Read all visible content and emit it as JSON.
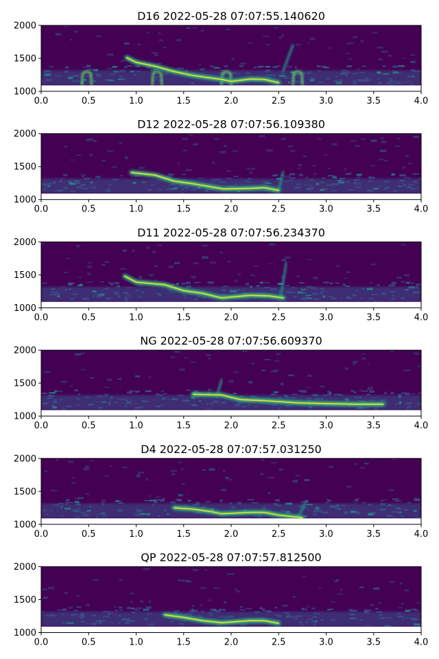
{
  "chart_data": [
    {
      "type": "heatmap",
      "title": "D16 2022-05-28 07:07:55.140620",
      "xlabel": "",
      "ylabel": "",
      "xlim": [
        0,
        4
      ],
      "ylim": [
        1000,
        2000
      ],
      "x_ticks": [
        "0.0",
        "0.5",
        "1.0",
        "1.5",
        "2.0",
        "2.5",
        "3.0",
        "3.5",
        "4.0"
      ],
      "y_ticks": [
        "1000",
        "1500",
        "2000"
      ],
      "data_floor": 1090,
      "colormap": "viridis",
      "call_track": [
        [
          0.9,
          1510
        ],
        [
          1.0,
          1440
        ],
        [
          1.2,
          1380
        ],
        [
          1.4,
          1300
        ],
        [
          1.6,
          1240
        ],
        [
          1.8,
          1200
        ],
        [
          1.9,
          1180
        ],
        [
          2.0,
          1150
        ],
        [
          2.2,
          1185
        ],
        [
          2.35,
          1180
        ],
        [
          2.5,
          1130
        ]
      ],
      "bumps": [
        0.48,
        1.22,
        1.95,
        2.7
      ],
      "streaks": [
        [
          2.55,
          1320,
          2.65,
          1700
        ]
      ],
      "grid": false
    },
    {
      "type": "heatmap",
      "title": "D12 2022-05-28 07:07:56.109380",
      "xlabel": "",
      "ylabel": "",
      "xlim": [
        0,
        4
      ],
      "ylim": [
        1000,
        2000
      ],
      "x_ticks": [
        "0.0",
        "0.5",
        "1.0",
        "1.5",
        "2.0",
        "2.5",
        "3.0",
        "3.5",
        "4.0"
      ],
      "y_ticks": [
        "1000",
        "1500",
        "2000"
      ],
      "data_floor": 1090,
      "colormap": "viridis",
      "call_track": [
        [
          0.95,
          1410
        ],
        [
          1.2,
          1370
        ],
        [
          1.4,
          1280
        ],
        [
          1.6,
          1240
        ],
        [
          1.8,
          1190
        ],
        [
          1.92,
          1160
        ],
        [
          2.2,
          1170
        ],
        [
          2.35,
          1180
        ],
        [
          2.5,
          1140
        ]
      ],
      "bumps": [],
      "streaks": [
        [
          2.5,
          1150,
          2.55,
          1420
        ]
      ],
      "grid": false
    },
    {
      "type": "heatmap",
      "title": "D11 2022-05-28 07:07:56.234370",
      "xlabel": "",
      "ylabel": "",
      "xlim": [
        0,
        4
      ],
      "ylim": [
        1000,
        2000
      ],
      "x_ticks": [
        "0.0",
        "0.5",
        "1.0",
        "1.5",
        "2.0",
        "2.5",
        "3.0",
        "3.5",
        "4.0"
      ],
      "y_ticks": [
        "1000",
        "1500",
        "2000"
      ],
      "data_floor": 1090,
      "colormap": "viridis",
      "call_track": [
        [
          0.88,
          1480
        ],
        [
          1.0,
          1390
        ],
        [
          1.3,
          1350
        ],
        [
          1.5,
          1260
        ],
        [
          1.7,
          1220
        ],
        [
          1.9,
          1150
        ],
        [
          2.2,
          1190
        ],
        [
          2.4,
          1180
        ],
        [
          2.55,
          1150
        ]
      ],
      "bumps": [],
      "streaks": [
        [
          2.52,
          1150,
          2.58,
          1680
        ]
      ],
      "grid": false
    },
    {
      "type": "heatmap",
      "title": "NG 2022-05-28 07:07:56.609370",
      "xlabel": "",
      "ylabel": "",
      "xlim": [
        0,
        4
      ],
      "ylim": [
        1000,
        2000
      ],
      "x_ticks": [
        "0.0",
        "0.5",
        "1.0",
        "1.5",
        "2.0",
        "2.5",
        "3.0",
        "3.5",
        "4.0"
      ],
      "y_ticks": [
        "1000",
        "1500",
        "2000"
      ],
      "data_floor": 1090,
      "colormap": "viridis",
      "call_track": [
        [
          1.6,
          1330
        ],
        [
          1.9,
          1320
        ],
        [
          2.1,
          1250
        ],
        [
          2.4,
          1230
        ],
        [
          2.7,
          1200
        ],
        [
          3.0,
          1190
        ],
        [
          3.3,
          1180
        ],
        [
          3.6,
          1180
        ]
      ],
      "bumps": [],
      "streaks": [
        [
          1.85,
          1300,
          1.9,
          1550
        ]
      ],
      "grid": false
    },
    {
      "type": "heatmap",
      "title": "D4 2022-05-28 07:07:57.031250",
      "xlabel": "",
      "ylabel": "",
      "xlim": [
        0,
        4
      ],
      "ylim": [
        1000,
        2000
      ],
      "x_ticks": [
        "0.0",
        "0.5",
        "1.0",
        "1.5",
        "2.0",
        "2.5",
        "3.0",
        "3.5",
        "4.0"
      ],
      "y_ticks": [
        "1000",
        "1500",
        "2000"
      ],
      "data_floor": 1090,
      "colormap": "viridis",
      "call_track": [
        [
          1.4,
          1250
        ],
        [
          1.6,
          1230
        ],
        [
          1.8,
          1190
        ],
        [
          1.9,
          1160
        ],
        [
          2.2,
          1180
        ],
        [
          2.35,
          1180
        ],
        [
          2.5,
          1140
        ],
        [
          2.75,
          1100
        ]
      ],
      "bumps": [],
      "streaks": [
        [
          2.7,
          1100,
          2.78,
          1320
        ]
      ],
      "grid": false
    },
    {
      "type": "heatmap",
      "title": "QP 2022-05-28 07:07:57.812500",
      "xlabel": "",
      "ylabel": "",
      "xlim": [
        0,
        4
      ],
      "ylim": [
        1000,
        2000
      ],
      "x_ticks": [
        "0.0",
        "0.5",
        "1.0",
        "1.5",
        "2.0",
        "2.5",
        "3.0",
        "3.5",
        "4.0"
      ],
      "y_ticks": [
        "1000",
        "1500",
        "2000"
      ],
      "data_floor": 1090,
      "colormap": "viridis",
      "call_track": [
        [
          1.3,
          1270
        ],
        [
          1.5,
          1230
        ],
        [
          1.7,
          1180
        ],
        [
          1.9,
          1150
        ],
        [
          2.2,
          1180
        ],
        [
          2.35,
          1180
        ],
        [
          2.5,
          1140
        ]
      ],
      "bumps": [],
      "streaks": [],
      "grid": false
    }
  ],
  "colors": {
    "bg_dark": "#440154",
    "bg_mid": "#3b528b",
    "teal": "#21918c",
    "green": "#5ec962",
    "yellow": "#fde725"
  }
}
